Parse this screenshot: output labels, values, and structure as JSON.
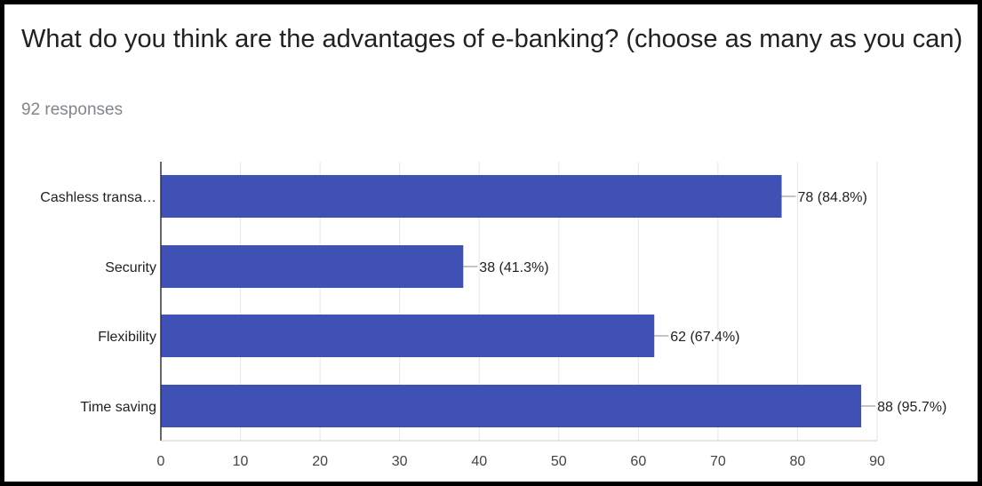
{
  "header": {
    "title": "What do you think are the advantages of e-banking? (choose as many as you can)",
    "responses": "92 responses"
  },
  "colors": {
    "bar": "#3f51b5",
    "grid": "#e6e6e6",
    "axis": "#333333"
  },
  "chart_data": {
    "type": "bar",
    "orientation": "horizontal",
    "title": "What do you think are the advantages of e-banking? (choose as many as you can)",
    "categories": [
      "Cashless transa…",
      "Security",
      "Flexibility",
      "Time saving"
    ],
    "values": [
      78,
      38,
      62,
      88
    ],
    "data_labels": [
      "78 (84.8%)",
      "38 (41.3%)",
      "62 (67.4%)",
      "88 (95.7%)"
    ],
    "xlim": [
      0,
      90
    ],
    "xticks": [
      0,
      10,
      20,
      30,
      40,
      50,
      60,
      70,
      80,
      90
    ],
    "xtick_labels": [
      "0",
      "10",
      "20",
      "30",
      "40",
      "50",
      "60",
      "70",
      "80",
      "90"
    ],
    "grid": true,
    "legend": "none",
    "xlabel": "",
    "ylabel": ""
  }
}
